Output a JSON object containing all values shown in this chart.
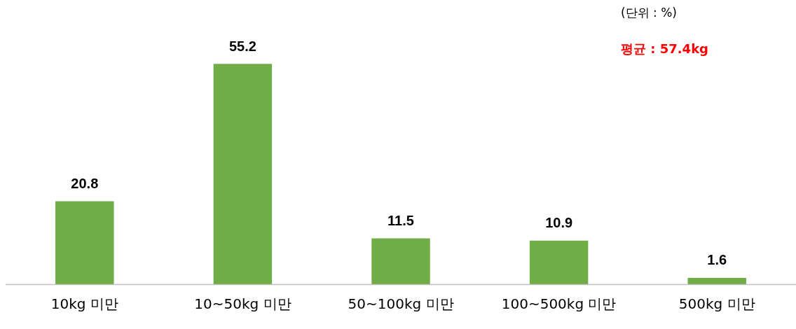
{
  "chart_data": {
    "type": "bar",
    "categories": [
      "10kg 미만",
      "10~50kg 미만",
      "50~100kg 미만",
      "100~500kg 미만",
      "500kg 미만"
    ],
    "values": [
      20.8,
      55.2,
      11.5,
      10.9,
      1.6
    ],
    "color": "#70ad47",
    "data_labels": true,
    "grid": false,
    "legend": false,
    "annotations": [
      "(단위 : %)",
      "평균 : 57.4kg"
    ]
  }
}
